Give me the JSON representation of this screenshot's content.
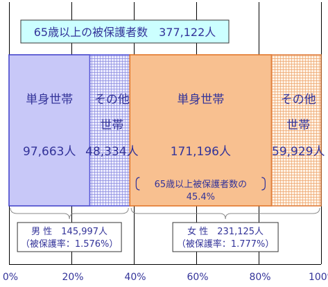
{
  "chart_data": {
    "type": "bar",
    "orientation": "horizontal-stacked",
    "title": "65歳以上の被保護者数　377,122人",
    "total": 377122,
    "x_axis": {
      "ticks": [
        "0%",
        "20%",
        "40%",
        "60%",
        "80%",
        "100%"
      ],
      "values": [
        0,
        20,
        40,
        60,
        80,
        100
      ],
      "range": [
        0,
        100
      ],
      "unit": "%"
    },
    "grid": true,
    "segments": [
      {
        "group": "male",
        "label_lines": [
          "単身世帯"
        ],
        "value": 97663,
        "value_label": "97,663人",
        "color": "#c8c8f8",
        "border": "#3c3cc8",
        "pattern": "solid"
      },
      {
        "group": "male",
        "label_lines": [
          "その他",
          "世帯"
        ],
        "value": 48334,
        "value_label": "48,334人",
        "color": "#d8d8f8",
        "border": "#5a5ad8",
        "pattern": "grid"
      },
      {
        "group": "female",
        "label_lines": [
          "単身世帯"
        ],
        "value": 171196,
        "value_label": "171,196人",
        "color": "#f8c090",
        "border": "#e07020",
        "pattern": "solid"
      },
      {
        "group": "female",
        "label_lines": [
          "その他",
          "世帯"
        ],
        "value": 59929,
        "value_label": "59,929人",
        "color": "#fbe0c8",
        "border": "#e08040",
        "pattern": "grid"
      }
    ],
    "annotations": {
      "female_single_share": {
        "lines": [
          "65歳以上被保護者数の",
          "45.4%"
        ],
        "value": 45.4
      }
    },
    "groups": [
      {
        "id": "male",
        "lines": [
          "男 性　145,997人",
          "（被保護率：1.576%）"
        ],
        "total": 145997,
        "rate": 1.576
      },
      {
        "id": "female",
        "lines": [
          "女 性　231,125人",
          "（被保護率：1.777%）"
        ],
        "total": 231125,
        "rate": 1.777
      }
    ],
    "colors": {
      "text": "#333399",
      "grid": "#000000",
      "title_bg": "#ccffff"
    }
  }
}
